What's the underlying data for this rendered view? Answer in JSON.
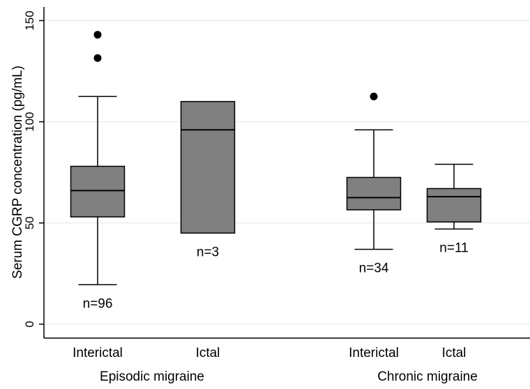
{
  "chart_data": {
    "type": "box",
    "ylabel": "Serum CGRP concentration (pg/mL)",
    "ylim": [
      0,
      155
    ],
    "yticks": [
      0,
      50,
      100,
      150
    ],
    "grid": "horizontal",
    "groups": [
      {
        "label": "Episodic migraine",
        "categories": [
          "Interictal",
          "Ictal"
        ]
      },
      {
        "label": "Chronic migraine",
        "categories": [
          "Interictal",
          "Ictal"
        ]
      }
    ],
    "boxes": [
      {
        "group": "Episodic migraine",
        "category": "Interictal",
        "n_label": "n=96",
        "whisker_low": 19.5,
        "q1": 53,
        "median": 66,
        "q3": 78,
        "whisker_high": 112.5,
        "outliers": [
          131.5,
          143
        ]
      },
      {
        "group": "Episodic migraine",
        "category": "Ictal",
        "n_label": "n=3",
        "whisker_low": null,
        "q1": 45,
        "median": 96,
        "q3": 110,
        "whisker_high": null,
        "outliers": []
      },
      {
        "group": "Chronic migraine",
        "category": "Interictal",
        "n_label": "n=34",
        "whisker_low": 37,
        "q1": 56.5,
        "median": 62.5,
        "q3": 72.5,
        "whisker_high": 96,
        "outliers": [
          112.5
        ]
      },
      {
        "group": "Chronic migraine",
        "category": "Ictal",
        "n_label": "n=11",
        "whisker_low": 47,
        "q1": 50.5,
        "median": 63,
        "q3": 67,
        "whisker_high": 79,
        "outliers": []
      }
    ],
    "colors": {
      "box_fill": "#808080",
      "grid": "#dde8ec",
      "axis": "#000000"
    }
  }
}
